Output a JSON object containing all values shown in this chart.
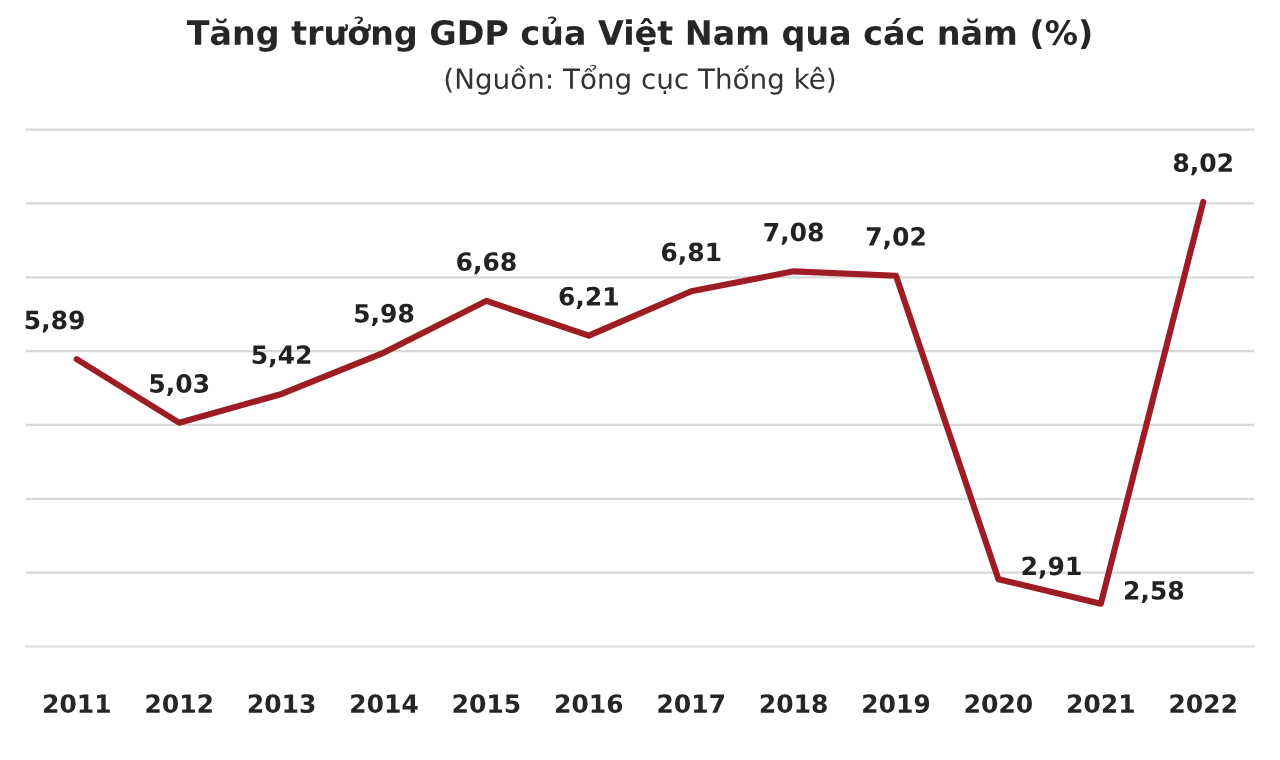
{
  "chart_data": {
    "type": "line",
    "title": "Tăng trưởng GDP của Việt Nam qua các năm (%)",
    "subtitle": "(Nguồn: Tổng cục Thống kê)",
    "categories": [
      "2011",
      "2012",
      "2013",
      "2014",
      "2015",
      "2016",
      "2017",
      "2018",
      "2019",
      "2020",
      "2021",
      "2022"
    ],
    "series": [
      {
        "color": "#9e1c24",
        "values": [
          5.89,
          5.03,
          5.42,
          5.98,
          6.68,
          6.21,
          6.81,
          7.08,
          7.02,
          2.91,
          2.58,
          8.02
        ],
        "value_labels": [
          "5,89",
          "5,03",
          "5,42",
          "5,98",
          "6,68",
          "6,21",
          "6,81",
          "7,08",
          "7,02",
          "2,91",
          "2,58",
          "8,02"
        ]
      }
    ],
    "grid": "y",
    "tick_labels": "x",
    "legend": false,
    "marker": "none",
    "line_style": "solid"
  }
}
